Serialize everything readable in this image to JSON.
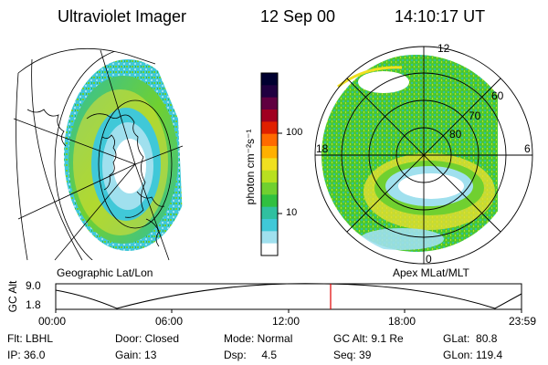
{
  "header": {
    "title": "Ultraviolet Imager",
    "date": "12 Sep 00",
    "time": "14:10:17 UT"
  },
  "left_panel": {
    "caption": "Geographic Lat/Lon"
  },
  "colorbar": {
    "unit_label": "photon cm⁻²s⁻¹",
    "ticks": [
      "100",
      "10"
    ],
    "colors": [
      "#000030",
      "#200040",
      "#600040",
      "#a00020",
      "#e02000",
      "#ff6a00",
      "#ffb000",
      "#f0e020",
      "#b8e020",
      "#70d030",
      "#30c040",
      "#30c0a0",
      "#40c8d8",
      "#a0e0ee",
      "#ffffff"
    ]
  },
  "right_panel": {
    "caption": "Apex  MLat/MLT",
    "lat_labels": [
      "60",
      "70",
      "80"
    ],
    "mlt_labels": {
      "top": "12",
      "left": "18",
      "right": "6",
      "bottom": "0"
    }
  },
  "altitude_plot": {
    "ylabel": "GC Alt",
    "yticks": [
      "9.0",
      "1.8"
    ],
    "xticks": [
      "00:00",
      "06:00",
      "12:00",
      "18:00",
      "23:59"
    ],
    "marker_color": "#e00000"
  },
  "info": {
    "flt": "Flt: LBHL",
    "door": "Door: Closed",
    "mode": "Mode: Normal",
    "gc_alt": "GC Alt: 9.1 Re",
    "glat": "GLat:  80.8",
    "ip": "IP: 36.0",
    "gain": "Gain: 13",
    "dsp": "Dsp:     4.5",
    "seq": "Seq: 39",
    "glon": "GLon: 119.4"
  }
}
